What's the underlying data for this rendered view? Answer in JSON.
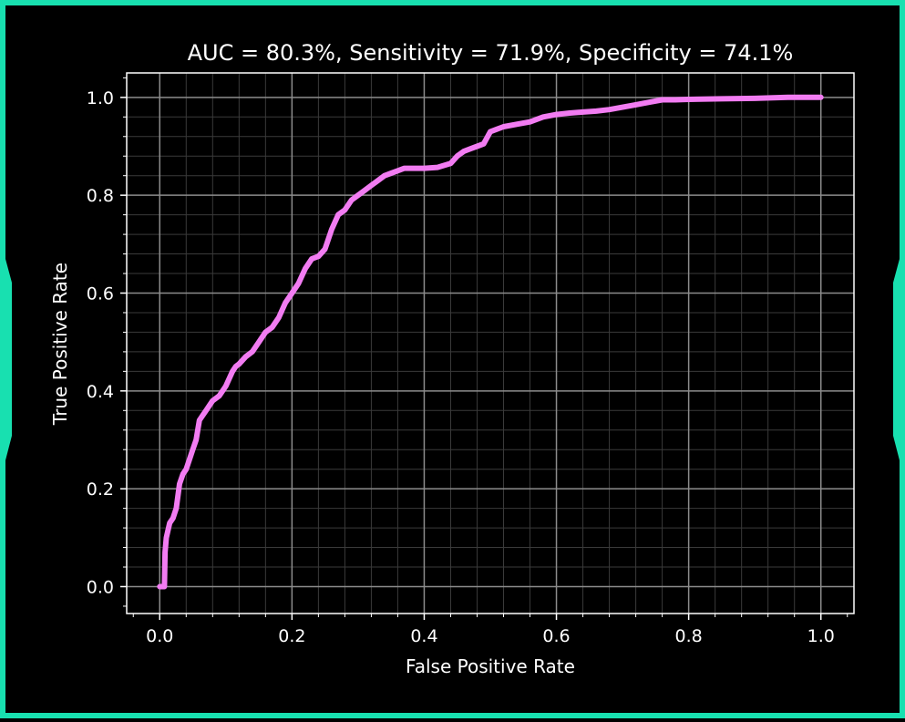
{
  "colors": {
    "frame": "#18e0b0",
    "background": "#000000",
    "axes": "#ffffff",
    "grid_major": "#8c8c8c",
    "grid_minor": "#3a3a3a",
    "line": "#f27cf2"
  },
  "chart_data": {
    "type": "line",
    "title": "AUC = 80.3%, Sensitivity = 71.9%, Specificity = 74.1%",
    "xlabel": "False Positive Rate",
    "ylabel": "True Positive Rate",
    "xlim": [
      -0.05,
      1.05
    ],
    "ylim": [
      -0.055,
      1.05
    ],
    "grid": true,
    "xticks": [
      0.0,
      0.2,
      0.4,
      0.6,
      0.8,
      1.0
    ],
    "yticks": [
      0.0,
      0.2,
      0.4,
      0.6,
      0.8,
      1.0
    ],
    "xtick_labels": [
      "0.0",
      "0.2",
      "0.4",
      "0.6",
      "0.8",
      "1.0"
    ],
    "ytick_labels": [
      "0.0",
      "0.2",
      "0.4",
      "0.6",
      "0.8",
      "1.0"
    ],
    "series": [
      {
        "x": [
          0.0,
          0.003,
          0.007,
          0.008,
          0.01,
          0.015,
          0.02,
          0.025,
          0.03,
          0.035,
          0.04,
          0.045,
          0.05,
          0.055,
          0.06,
          0.065,
          0.07,
          0.075,
          0.08,
          0.09,
          0.1,
          0.11,
          0.115,
          0.12,
          0.13,
          0.14,
          0.15,
          0.16,
          0.17,
          0.18,
          0.19,
          0.2,
          0.21,
          0.22,
          0.23,
          0.24,
          0.25,
          0.26,
          0.27,
          0.28,
          0.29,
          0.3,
          0.31,
          0.32,
          0.33,
          0.34,
          0.35,
          0.36,
          0.37,
          0.38,
          0.4,
          0.42,
          0.44,
          0.45,
          0.46,
          0.47,
          0.48,
          0.49,
          0.5,
          0.51,
          0.52,
          0.54,
          0.56,
          0.58,
          0.6,
          0.62,
          0.64,
          0.66,
          0.68,
          0.7,
          0.72,
          0.74,
          0.76,
          0.78,
          0.8,
          0.85,
          0.9,
          0.95,
          1.0
        ],
        "y": [
          0.0,
          0.0,
          0.0,
          0.07,
          0.1,
          0.13,
          0.14,
          0.16,
          0.21,
          0.23,
          0.24,
          0.26,
          0.28,
          0.3,
          0.34,
          0.35,
          0.36,
          0.37,
          0.38,
          0.39,
          0.41,
          0.44,
          0.45,
          0.455,
          0.47,
          0.48,
          0.5,
          0.52,
          0.53,
          0.55,
          0.58,
          0.6,
          0.62,
          0.65,
          0.67,
          0.675,
          0.69,
          0.73,
          0.76,
          0.77,
          0.79,
          0.8,
          0.81,
          0.82,
          0.83,
          0.84,
          0.845,
          0.85,
          0.855,
          0.855,
          0.855,
          0.857,
          0.865,
          0.88,
          0.89,
          0.895,
          0.9,
          0.905,
          0.93,
          0.935,
          0.94,
          0.945,
          0.95,
          0.96,
          0.965,
          0.968,
          0.97,
          0.972,
          0.975,
          0.98,
          0.985,
          0.99,
          0.995,
          0.995,
          0.996,
          0.997,
          0.998,
          1.0,
          1.0
        ]
      }
    ]
  }
}
